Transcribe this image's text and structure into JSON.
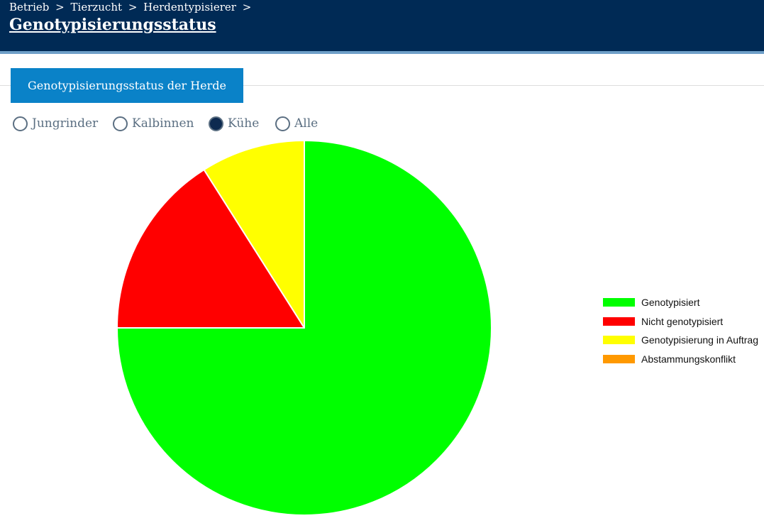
{
  "header": {
    "breadcrumb": [
      "Betrieb",
      "Tierzucht",
      "Herdentypisierer"
    ],
    "separator": ">",
    "title": "Genotypisierungsstatus"
  },
  "tab": {
    "label": "Genotypisierungsstatus der Herde"
  },
  "filters": {
    "options": [
      {
        "label": "Jungrinder",
        "checked": false
      },
      {
        "label": "Kalbinnen",
        "checked": false
      },
      {
        "label": "Kühe",
        "checked": true
      },
      {
        "label": "Alle",
        "checked": false
      }
    ]
  },
  "colors": {
    "header_bg": "#002a55",
    "accent_button": "#0a82c8",
    "radio_checked": "#0d2a50"
  },
  "chart_data": {
    "type": "pie",
    "start_angle": "top, clockwise",
    "legend_position": "right",
    "slices": [
      {
        "label": "Genotypisiert",
        "value": 75,
        "color": "#00ff00"
      },
      {
        "label": "Nicht genotypisiert",
        "value": 16,
        "color": "#ff0000"
      },
      {
        "label": "Genotypisierung in Auftrag",
        "value": 9,
        "color": "#ffff00"
      },
      {
        "label": "Abstammungskonflikt",
        "value": 0,
        "color": "#ff9900"
      }
    ]
  }
}
